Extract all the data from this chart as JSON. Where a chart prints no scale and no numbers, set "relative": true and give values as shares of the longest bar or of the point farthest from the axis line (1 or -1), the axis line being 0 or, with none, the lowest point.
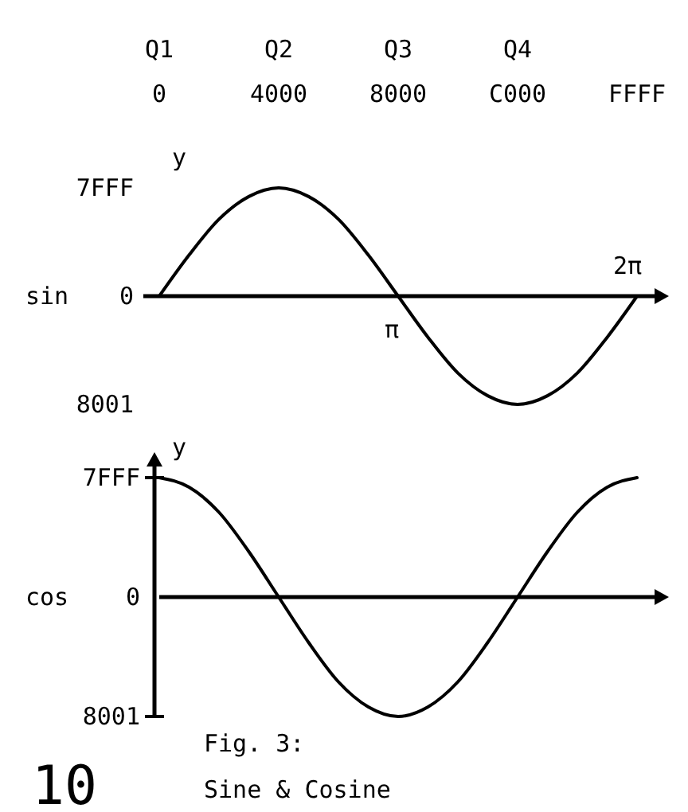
{
  "chart_data": [
    {
      "type": "line",
      "categories": [
        "0",
        null,
        null,
        null,
        "4000",
        null,
        null,
        null,
        "8000",
        null,
        null,
        null,
        "C000",
        null,
        null,
        null,
        "FFFF"
      ],
      "relative": true,
      "ylabel": "y",
      "series": [
        {
          "name": "sin",
          "color": "#000000",
          "values": [
            0,
            0.38,
            0.71,
            0.92,
            1,
            0.92,
            0.71,
            0.38,
            0,
            -0.38,
            -0.71,
            -0.92,
            -1,
            -0.92,
            -0.71,
            -0.38,
            0
          ]
        }
      ],
      "annotations": [
        "Q1",
        "Q2",
        "Q3",
        "Q4",
        "7FFF",
        "0",
        "8001",
        {
          "text": "π",
          "x": "8000",
          "y": 0
        },
        {
          "text": "2π",
          "x": "FFFF",
          "y": 0
        }
      ]
    },
    {
      "type": "line",
      "categories": [
        null,
        null,
        null,
        null,
        null,
        null,
        null,
        null,
        null,
        null,
        null,
        null,
        null,
        null,
        null,
        null,
        null
      ],
      "relative": true,
      "ylabel": "y",
      "series": [
        {
          "name": "cos",
          "color": "#000000",
          "values": [
            1,
            0.92,
            0.71,
            0.38,
            0,
            -0.38,
            -0.71,
            -0.92,
            -1,
            -0.92,
            -0.71,
            -0.38,
            0,
            0.38,
            0.71,
            0.92,
            1
          ]
        }
      ],
      "title": "Fig. 3:",
      "subtitle": "Sine & Cosine",
      "annotations": [
        "7FFF",
        "0",
        "8001",
        "10"
      ]
    }
  ]
}
